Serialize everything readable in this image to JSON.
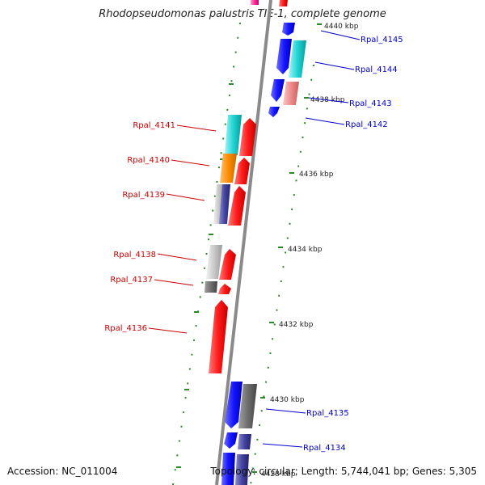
{
  "title": "Rhodopseudomonas palustris TIE-1, complete genome",
  "footer": {
    "accession": "Accession: NC_011004",
    "summary": "Topology: circular; Length: 5,744,041 bp; Genes: 5,305"
  },
  "scale_labels": [
    "4440 kbp",
    "4438 kbp",
    "4436 kbp",
    "4434 kbp",
    "4432 kbp",
    "4430 kbp",
    "4428 kbp"
  ],
  "genes_right": [
    "Rpal_4145",
    "Rpal_4144",
    "Rpal_4143",
    "Rpal_4142",
    "Rpal_4135",
    "Rpal_4134"
  ],
  "genes_left": [
    "Rpal_4141",
    "Rpal_4140",
    "Rpal_4139",
    "Rpal_4138",
    "Rpal_4137",
    "Rpal_4136"
  ],
  "colors": {
    "forward_label": "#cc0000",
    "reverse_label": "#0000cc",
    "backbone": "#888888",
    "tick": "#2a8a2a"
  }
}
